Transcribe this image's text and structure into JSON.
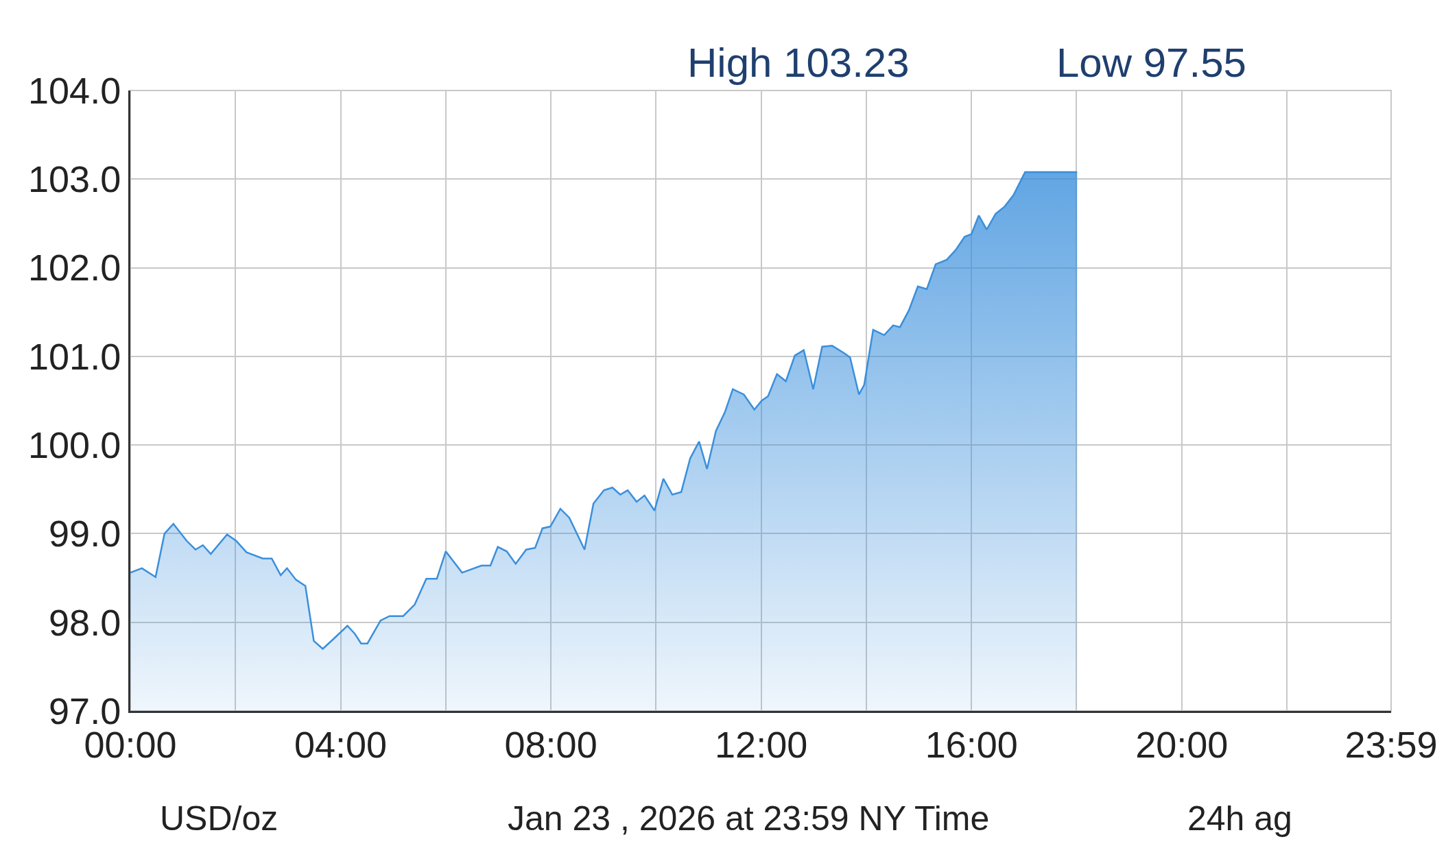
{
  "chart_data": {
    "type": "area",
    "color": "#3a8fdc",
    "annotations": [
      "High 103.23",
      "Low 97.55",
      "USD/oz",
      "Jan 23 , 2026 at 23:59 NY Time",
      "24h ag"
    ],
    "x": [
      0,
      0.22,
      0.48,
      0.65,
      0.82,
      1.07,
      1.24,
      1.38,
      1.53,
      1.84,
      2.01,
      2.21,
      2.52,
      2.69,
      2.86,
      2.98,
      3.15,
      3.33,
      3.49,
      3.66,
      3.88,
      4.13,
      4.27,
      4.39,
      4.51,
      4.76,
      4.93,
      5.19,
      5.41,
      5.63,
      5.83,
      6.0,
      6.31,
      6.68,
      6.85,
      6.99,
      7.16,
      7.33,
      7.53,
      7.7,
      7.84,
      7.99,
      8.18,
      8.35,
      8.64,
      8.81,
      9.01,
      9.17,
      9.32,
      9.46,
      9.63,
      9.78,
      9.97,
      10.14,
      10.31,
      10.48,
      10.65,
      10.82,
      10.97,
      11.14,
      11.31,
      11.46,
      11.67,
      11.87,
      12.01,
      12.13,
      12.3,
      12.47,
      12.64,
      12.81,
      12.99,
      13.16,
      13.35,
      13.57,
      13.69,
      13.86,
      13.96,
      14.13,
      14.34,
      14.51,
      14.64,
      14.81,
      14.98,
      15.15,
      15.32,
      15.53,
      15.7,
      15.87,
      16.0,
      16.14,
      16.29,
      16.46,
      16.63,
      16.8,
      17.02,
      17.31,
      18.01
    ],
    "values": [
      98.56,
      98.61,
      98.51,
      99.0,
      99.11,
      98.92,
      98.82,
      98.87,
      98.77,
      98.99,
      98.92,
      98.79,
      98.72,
      98.72,
      98.53,
      98.61,
      98.48,
      98.41,
      97.79,
      97.7,
      97.82,
      97.96,
      97.87,
      97.76,
      97.76,
      98.02,
      98.07,
      98.07,
      98.2,
      98.49,
      98.49,
      98.8,
      98.56,
      98.64,
      98.64,
      98.85,
      98.8,
      98.66,
      98.82,
      98.84,
      99.06,
      99.08,
      99.28,
      99.18,
      98.82,
      99.34,
      99.49,
      99.52,
      99.44,
      99.49,
      99.36,
      99.43,
      99.26,
      99.62,
      99.44,
      99.47,
      99.85,
      100.04,
      99.73,
      100.16,
      100.37,
      100.63,
      100.57,
      100.4,
      100.5,
      100.55,
      100.8,
      100.72,
      101.01,
      101.07,
      100.63,
      101.11,
      101.12,
      101.04,
      100.99,
      100.57,
      100.68,
      101.3,
      101.24,
      101.35,
      101.33,
      101.52,
      101.79,
      101.76,
      102.04,
      102.09,
      102.2,
      102.35,
      102.38,
      102.59,
      102.43,
      102.61,
      102.69,
      102.82,
      103.08,
      103.08,
      103.08
    ],
    "xlim": [
      0,
      23.983
    ],
    "xticks": [
      {
        "value": 0,
        "label": "00:00"
      },
      {
        "value": 2,
        "label": null
      },
      {
        "value": 4,
        "label": "04:00"
      },
      {
        "value": 6,
        "label": null
      },
      {
        "value": 8,
        "label": "08:00"
      },
      {
        "value": 10,
        "label": null
      },
      {
        "value": 12,
        "label": "12:00"
      },
      {
        "value": 14,
        "label": null
      },
      {
        "value": 16,
        "label": "16:00"
      },
      {
        "value": 18,
        "label": null
      },
      {
        "value": 20,
        "label": "20:00"
      },
      {
        "value": 22,
        "label": null
      },
      {
        "value": 23.983,
        "label": "23:59"
      }
    ],
    "ylim": [
      97,
      104
    ],
    "yticks": [
      {
        "value": 97,
        "label": "97.0"
      },
      {
        "value": 98,
        "label": "98.0"
      },
      {
        "value": 99,
        "label": "99.0"
      },
      {
        "value": 100,
        "label": "100.0"
      },
      {
        "value": 101,
        "label": "101.0"
      },
      {
        "value": 102,
        "label": "102.0"
      },
      {
        "value": 103,
        "label": "103.0"
      },
      {
        "value": 104,
        "label": "104.0"
      }
    ],
    "grid": true,
    "legend": false
  }
}
